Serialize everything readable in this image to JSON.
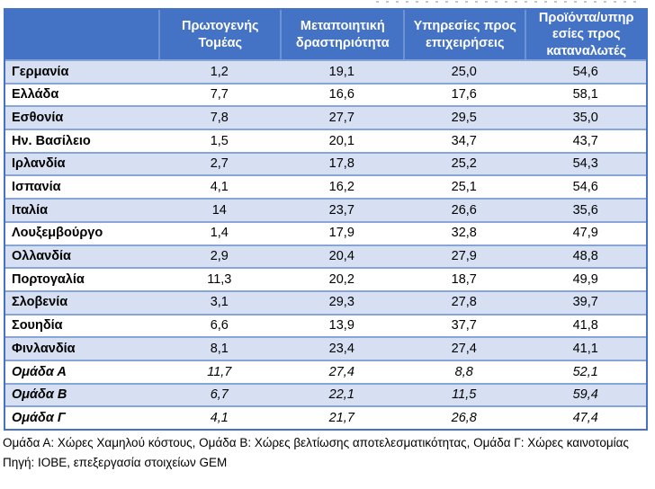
{
  "table": {
    "column_headers": [
      "",
      "Πρωτογενής\nΤομέας",
      "Μεταποιητική\nδραστηριότητα",
      "Υπηρεσίες προς\nεπιχειρήσεις",
      "Προϊόντα/υπηρ\nεσίες προς\nκαταναλωτές"
    ],
    "rows": [
      {
        "label": "Γερμανία",
        "values": [
          "1,2",
          "19,1",
          "25,0",
          "54,6"
        ],
        "group": false
      },
      {
        "label": "Ελλάδα",
        "values": [
          "7,7",
          "16,6",
          "17,6",
          "58,1"
        ],
        "group": false
      },
      {
        "label": "Εσθονία",
        "values": [
          "7,8",
          "27,7",
          "29,5",
          "35,0"
        ],
        "group": false
      },
      {
        "label": "Ην. Βασίλειο",
        "values": [
          "1,5",
          "20,1",
          "34,7",
          "43,7"
        ],
        "group": false
      },
      {
        "label": "Ιρλανδία",
        "values": [
          "2,7",
          "17,8",
          "25,2",
          "54,3"
        ],
        "group": false
      },
      {
        "label": "Ισπανία",
        "values": [
          "4,1",
          "16,2",
          "25,1",
          "54,6"
        ],
        "group": false
      },
      {
        "label": "Ιταλία",
        "values": [
          "14",
          "23,7",
          "26,6",
          "35,6"
        ],
        "group": false
      },
      {
        "label": "Λουξεμβούργο",
        "values": [
          "1,4",
          "17,9",
          "32,8",
          "47,9"
        ],
        "group": false
      },
      {
        "label": "Ολλανδία",
        "values": [
          "2,9",
          "20,4",
          "27,9",
          "48,8"
        ],
        "group": false
      },
      {
        "label": "Πορτογαλία",
        "values": [
          "11,3",
          "20,2",
          "18,7",
          "49,9"
        ],
        "group": false
      },
      {
        "label": "Σλοβενία",
        "values": [
          "3,1",
          "29,3",
          "27,8",
          "39,7"
        ],
        "group": false
      },
      {
        "label": "Σουηδία",
        "values": [
          "6,6",
          "13,9",
          "37,7",
          "41,8"
        ],
        "group": false
      },
      {
        "label": "Φινλανδία",
        "values": [
          "8,1",
          "23,4",
          "27,4",
          "41,1"
        ],
        "group": false
      },
      {
        "label": "Ομάδα Α",
        "values": [
          "11,7",
          "27,4",
          "8,8",
          "52,1"
        ],
        "group": true
      },
      {
        "label": "Ομάδα Β",
        "values": [
          "6,7",
          "22,1",
          "11,5",
          "59,4"
        ],
        "group": true
      },
      {
        "label": "Ομάδα Γ",
        "values": [
          "4,1",
          "21,7",
          "26,8",
          "47,4"
        ],
        "group": true
      }
    ]
  },
  "footnotes": {
    "groups_note": "Ομάδα Α: Χώρες Χαμηλού κόστους, Ομάδα Β: Χώρες βελτίωσης αποτελεσματικότητας, Ομάδα Γ: Χώρες καινοτομίας",
    "source_note": "Πηγή: ΙΟΒΕ, επεξεργασία στοιχείων GEM"
  },
  "colors": {
    "header_bg": "#4472C4",
    "header_text": "#FFFFFF",
    "header_divider": "#6D93D3",
    "band_bg": "#D6E0F2",
    "row_line": "#88A5D8",
    "outer_border": "#4472C4",
    "text": "#000000"
  }
}
